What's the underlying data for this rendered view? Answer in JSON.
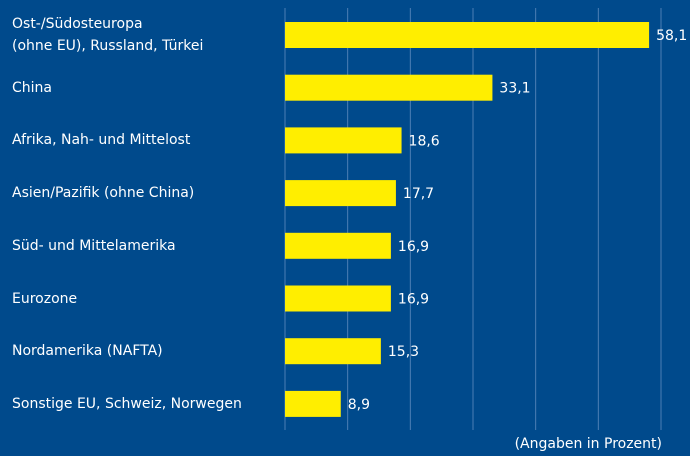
{
  "chart_data": {
    "type": "bar",
    "orientation": "horizontal",
    "categories": [
      "Ost-/Südosteuropa\n(ohne EU), Russland, Türkei",
      "China",
      "Afrika, Nah- und Mittelost",
      "Asien/Pazifik (ohne China)",
      "Süd- und Mittelamerika",
      "Eurozone",
      "Nordamerika (NAFTA)",
      "Sonstige EU, Schweiz, Norwegen"
    ],
    "values": [
      58.1,
      33.1,
      18.6,
      17.7,
      16.9,
      16.9,
      15.3,
      8.9
    ],
    "value_labels": [
      "58,1",
      "33,1",
      "18,6",
      "17,7",
      "16,9",
      "16,9",
      "15,3",
      "8,9"
    ],
    "color": "#ffee00",
    "xlim": [
      0,
      60
    ],
    "xticks": [
      0,
      10,
      20,
      30,
      40,
      50,
      60
    ],
    "grid": true,
    "note": "(Angaben in Prozent)"
  }
}
